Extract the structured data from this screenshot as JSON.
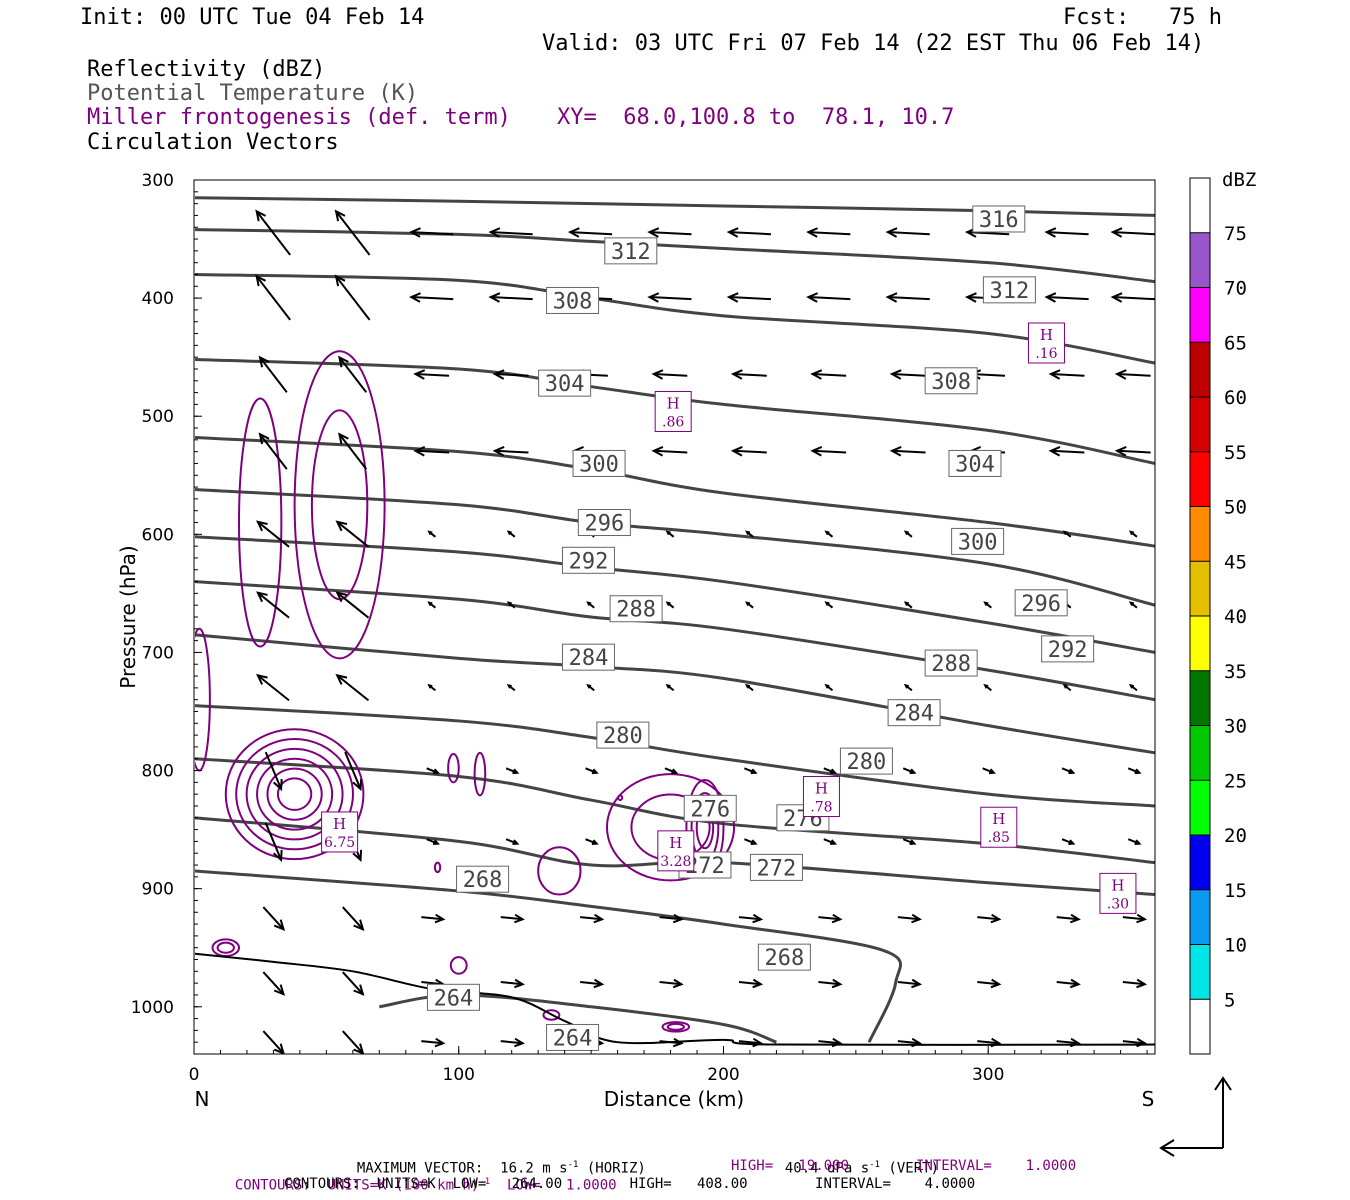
{
  "header": {
    "init": "Init: 00 UTC Tue 04 Feb 14",
    "fcst": "Fcst:   75 h",
    "valid": "Valid: 03 UTC Fri 07 Feb 14 (22 EST Thu 06 Feb 14)",
    "field1": "Reflectivity (dBZ)",
    "field2": "Potential Temperature (K)",
    "field3": "Miller frontogenesis (def. term)",
    "xy": "XY=  68.0,100.8 to  78.1, 10.7",
    "field4": "Circulation Vectors"
  },
  "colors": {
    "theta": "#444444",
    "fronto": "#7f007f",
    "vector": "#000000",
    "terrain": "#000000"
  },
  "chart_data": {
    "type": "cross-section",
    "ylabel": "Pressure (hPa)",
    "xlabel": "Distance (km)",
    "xlim": [
      0,
      363
    ],
    "ylim": [
      1040,
      300
    ],
    "x_ticks": [
      0,
      100,
      200,
      300
    ],
    "y_ticks": [
      300,
      400,
      500,
      600,
      700,
      800,
      900,
      1000
    ],
    "left_end": "N",
    "right_end": "S",
    "theta_contours": [
      {
        "label": "316",
        "points": [
          [
            0,
            315
          ],
          [
            100,
            318
          ],
          [
            200,
            322
          ],
          [
            300,
            326
          ],
          [
            363,
            330
          ]
        ],
        "labels_at": [
          [
            304,
            333
          ]
        ]
      },
      {
        "label": "312",
        "points": [
          [
            0,
            342
          ],
          [
            100,
            346
          ],
          [
            150,
            352
          ],
          [
            200,
            358
          ],
          [
            300,
            370
          ],
          [
            363,
            386
          ]
        ],
        "labels_at": [
          [
            165,
            360
          ],
          [
            308,
            393
          ]
        ]
      },
      {
        "label": "308",
        "points": [
          [
            0,
            380
          ],
          [
            100,
            385
          ],
          [
            150,
            400
          ],
          [
            200,
            415
          ],
          [
            300,
            430
          ],
          [
            363,
            455
          ]
        ],
        "labels_at": [
          [
            143,
            402
          ],
          [
            286,
            470
          ]
        ]
      },
      {
        "label": "304",
        "points": [
          [
            0,
            452
          ],
          [
            100,
            460
          ],
          [
            150,
            475
          ],
          [
            200,
            490
          ],
          [
            300,
            512
          ],
          [
            363,
            540
          ]
        ],
        "labels_at": [
          [
            140,
            472
          ],
          [
            295,
            540
          ]
        ]
      },
      {
        "label": "300",
        "points": [
          [
            0,
            518
          ],
          [
            100,
            530
          ],
          [
            150,
            545
          ],
          [
            200,
            565
          ],
          [
            300,
            590
          ],
          [
            363,
            610
          ]
        ],
        "labels_at": [
          [
            153,
            540
          ],
          [
            296,
            606
          ]
        ]
      },
      {
        "label": "296",
        "points": [
          [
            0,
            562
          ],
          [
            100,
            575
          ],
          [
            150,
            590
          ],
          [
            200,
            600
          ],
          [
            300,
            625
          ],
          [
            363,
            660
          ]
        ],
        "labels_at": [
          [
            155,
            590
          ],
          [
            320,
            658
          ]
        ]
      },
      {
        "label": "292",
        "points": [
          [
            0,
            602
          ],
          [
            100,
            615
          ],
          [
            150,
            628
          ],
          [
            200,
            640
          ],
          [
            300,
            675
          ],
          [
            363,
            700
          ]
        ],
        "labels_at": [
          [
            149,
            622
          ],
          [
            330,
            697
          ]
        ]
      },
      {
        "label": "288",
        "points": [
          [
            0,
            640
          ],
          [
            100,
            655
          ],
          [
            150,
            670
          ],
          [
            200,
            680
          ],
          [
            300,
            715
          ],
          [
            363,
            740
          ]
        ],
        "labels_at": [
          [
            167,
            663
          ],
          [
            286,
            709
          ]
        ]
      },
      {
        "label": "284",
        "points": [
          [
            0,
            685
          ],
          [
            100,
            705
          ],
          [
            150,
            712
          ],
          [
            200,
            722
          ],
          [
            300,
            762
          ],
          [
            363,
            785
          ]
        ],
        "labels_at": [
          [
            149,
            704
          ],
          [
            272,
            751
          ]
        ]
      },
      {
        "label": "280",
        "points": [
          [
            0,
            745
          ],
          [
            100,
            758
          ],
          [
            150,
            772
          ],
          [
            200,
            790
          ],
          [
            300,
            820
          ],
          [
            363,
            830
          ]
        ],
        "labels_at": [
          [
            162,
            770
          ],
          [
            254,
            792
          ]
        ]
      },
      {
        "label": "276",
        "points": [
          [
            0,
            790
          ],
          [
            100,
            805
          ],
          [
            150,
            825
          ],
          [
            200,
            845
          ],
          [
            300,
            862
          ],
          [
            363,
            878
          ]
        ],
        "labels_at": [
          [
            195,
            832
          ],
          [
            230,
            840
          ]
        ]
      },
      {
        "label": "272",
        "points": [
          [
            0,
            840
          ],
          [
            100,
            860
          ],
          [
            150,
            880
          ],
          [
            200,
            878
          ],
          [
            300,
            895
          ],
          [
            363,
            905
          ]
        ],
        "labels_at": [
          [
            193,
            880
          ],
          [
            220,
            882
          ]
        ]
      },
      {
        "label": "268",
        "points": [
          [
            0,
            885
          ],
          [
            100,
            902
          ],
          [
            150,
            915
          ],
          [
            200,
            930
          ],
          [
            260,
            952
          ],
          [
            265,
            980
          ],
          [
            255,
            1030
          ]
        ],
        "labels_at": [
          [
            109,
            892
          ],
          [
            223,
            958
          ]
        ]
      },
      {
        "label": "264",
        "points": [
          [
            70,
            1000
          ],
          [
            100,
            990
          ],
          [
            150,
            1000
          ],
          [
            200,
            1015
          ],
          [
            220,
            1030
          ]
        ],
        "labels_at": [
          [
            98,
            992
          ],
          [
            143,
            1026
          ]
        ]
      }
    ],
    "fronto_maxima": [
      {
        "label": "H",
        "value": ".16",
        "x": 322,
        "p": 438
      },
      {
        "label": "H",
        "value": ".86",
        "x": 181,
        "p": 496
      },
      {
        "label": "H",
        "value": "6.75",
        "x": 55,
        "p": 852
      },
      {
        "label": "H",
        "value": "3.28",
        "x": 182,
        "p": 868
      },
      {
        "label": "H",
        "value": ".78",
        "x": 237,
        "p": 822
      },
      {
        "label": "H",
        "value": ".85",
        "x": 304,
        "p": 848
      },
      {
        "label": "H",
        "value": ".30",
        "x": 349,
        "p": 904
      }
    ],
    "legend": {
      "title": "dBZ",
      "levels": [
        "5",
        "10",
        "15",
        "20",
        "25",
        "30",
        "35",
        "40",
        "45",
        "50",
        "55",
        "60",
        "65",
        "70",
        "75"
      ],
      "colors": [
        "#ffffff",
        "#00e5e5",
        "#0a9af0",
        "#0000f0",
        "#00ff00",
        "#00c800",
        "#007800",
        "#ffff00",
        "#e6be00",
        "#ff8c00",
        "#ff0000",
        "#d70000",
        "#be0000",
        "#ff00ff",
        "#9955c9",
        "#ffffff"
      ]
    }
  },
  "footer": {
    "line1a": "MAXIMUM VECTOR:  16.2 m s",
    "line1a_sup": "-1",
    "line1b": " (HORIZ)",
    "line1c": "40.4 dPa s",
    "line1c_sup": "-1",
    "line1d": " (VERT)",
    "line2a": "CONTOURS:  UNITS=K (100 km h)",
    "line2a_sup": "-1",
    "line2b": "  LOW=   1.0000",
    "line2c": "HIGH=   19.000",
    "line2d": "INTERVAL=    1.0000",
    "line3": "CONTOURS:  UNITS=K  LOW=   264.00        HIGH=   408.00        INTERVAL=    4.0000"
  }
}
